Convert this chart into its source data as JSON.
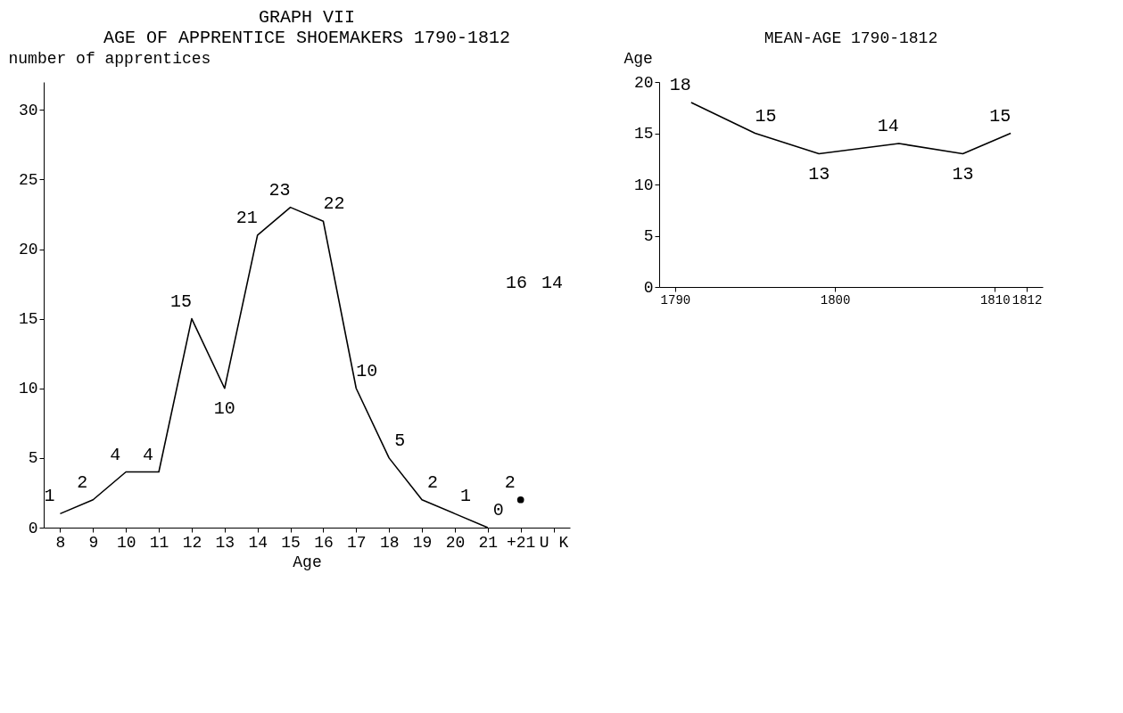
{
  "chart_data": [
    {
      "type": "line",
      "title": "GRAPH VII",
      "subtitle": "AGE OF APPRENTICE SHOEMAKERS 1790-1812",
      "xlabel": "Age",
      "ylabel": "number of apprentices",
      "categories": [
        "8",
        "9",
        "10",
        "11",
        "12",
        "13",
        "14",
        "15",
        "16",
        "17",
        "18",
        "19",
        "20",
        "21",
        "+21",
        "U K"
      ],
      "series": [
        {
          "color": "#000000",
          "values": [
            1,
            2,
            4,
            4,
            15,
            10,
            21,
            23,
            22,
            10,
            5,
            2,
            1,
            0,
            null,
            null
          ]
        },
        {
          "type": "scatter",
          "marker": "circle",
          "color": "#000000",
          "values": [
            null,
            null,
            null,
            null,
            null,
            null,
            null,
            null,
            null,
            null,
            null,
            null,
            null,
            null,
            2,
            null
          ]
        }
      ],
      "ylim": [
        0,
        32
      ],
      "yticks": [
        0,
        5,
        10,
        15,
        20,
        25,
        30
      ],
      "data_labels": true,
      "grid": false,
      "marker": "none",
      "annotations": [
        "16",
        "14"
      ]
    },
    {
      "type": "line",
      "title": "MEAN-AGE 1790-1812",
      "ylabel": "Age",
      "x": [
        1791,
        1795,
        1799,
        1804,
        1808,
        1811
      ],
      "series": [
        {
          "color": "#000000",
          "values": [
            18,
            15,
            13,
            14,
            13,
            15
          ]
        }
      ],
      "xlim": [
        1789,
        1813
      ],
      "xticks": [
        1790,
        1800,
        1810,
        1812
      ],
      "ylim": [
        0,
        20
      ],
      "yticks": [
        0,
        5,
        10,
        15,
        20
      ],
      "data_labels": true,
      "grid": false,
      "marker": "none"
    }
  ]
}
